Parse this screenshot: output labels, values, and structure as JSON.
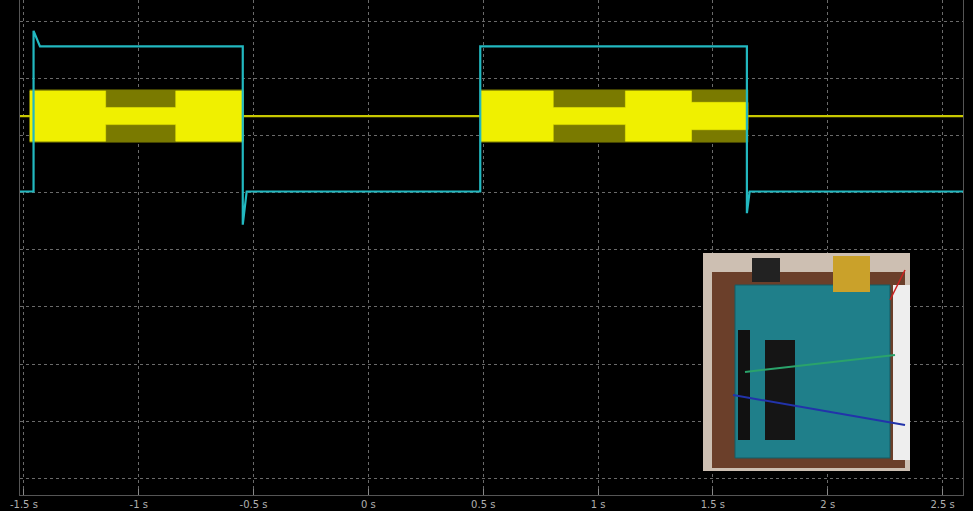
{
  "chart_data": {
    "type": "line",
    "xlim": [
      -1.517,
      2.589
    ],
    "xticks": [
      {
        "value": -1.5,
        "label": "-1.5 s"
      },
      {
        "value": -1,
        "label": "-1 s"
      },
      {
        "value": -0.5,
        "label": "-0.5 s"
      },
      {
        "value": 0,
        "label": "0 s"
      },
      {
        "value": 0.5,
        "label": "0.5 s"
      },
      {
        "value": 1,
        "label": "1 s"
      },
      {
        "value": 1.5,
        "label": "1.5 s"
      },
      {
        "value": 2,
        "label": "2 s"
      },
      {
        "value": 2.5,
        "label": "2.5 s"
      }
    ],
    "ylim": [
      -4.29,
      4.37
    ],
    "yticks": [
      -4,
      -3,
      -2,
      -1,
      0,
      1,
      2,
      3,
      4
    ],
    "grid": true,
    "tick_labels": "x",
    "series": [
      {
        "type": "line",
        "color": "#c8c800",
        "x": [
          -1.517,
          2.589
        ],
        "values": [
          2.34,
          2.34
        ]
      },
      {
        "type": "band",
        "color": "#7a7a00",
        "x": [
          -1.475,
          -0.545
        ],
        "high": [
          2.8,
          2.8
        ],
        "low": [
          1.88,
          1.88
        ]
      },
      {
        "type": "band",
        "color": "#7a7a00",
        "x": [
          0.487,
          1.653
        ],
        "high": [
          2.8,
          2.8
        ],
        "low": [
          1.88,
          1.88
        ]
      },
      {
        "type": "band",
        "color": "#f0f000",
        "x": [
          -1.475,
          -1.144,
          -1.144,
          -0.839,
          -0.839,
          -0.545
        ],
        "high": [
          2.78,
          2.78,
          2.49,
          2.49,
          2.78,
          2.78
        ],
        "low": [
          1.9,
          1.9,
          2.19,
          2.19,
          1.9,
          1.9
        ]
      },
      {
        "type": "band",
        "color": "#f0f000",
        "x": [
          0.487,
          0.805,
          0.805,
          1.119,
          1.119,
          1.407,
          1.407,
          1.653
        ],
        "high": [
          2.78,
          2.78,
          2.49,
          2.49,
          2.78,
          2.78,
          2.58,
          2.58
        ],
        "low": [
          1.9,
          1.9,
          2.19,
          2.19,
          1.9,
          1.9,
          2.1,
          2.1
        ]
      },
      {
        "type": "line",
        "color": "#22b8c0",
        "x": [
          -1.517,
          -1.458,
          -1.458,
          -1.43,
          -1.4,
          -0.547,
          -0.547,
          -0.53,
          -0.5,
          0.487,
          0.487,
          1.648,
          1.648,
          1.66,
          1.69,
          2.589
        ],
        "values": [
          1.02,
          1.02,
          3.83,
          3.56,
          3.56,
          3.56,
          0.44,
          1.02,
          1.02,
          1.02,
          3.56,
          3.56,
          0.64,
          1.02,
          1.02,
          1.02
        ]
      }
    ]
  }
}
